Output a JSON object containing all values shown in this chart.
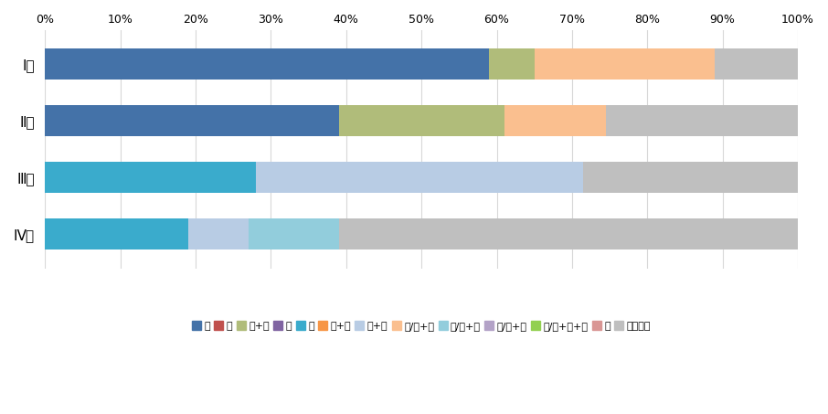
{
  "categories": [
    "Ⅰ期",
    "Ⅱ期",
    "Ⅲ期",
    "Ⅳ期"
  ],
  "legend_info": [
    [
      "手",
      "#4472a8"
    ],
    [
      "内",
      "#c0504d"
    ],
    [
      "手+内",
      "#b0bc7a"
    ],
    [
      "放",
      "#8064a2"
    ],
    [
      "薬",
      "#3aabcc"
    ],
    [
      "放+薬",
      "#f79646"
    ],
    [
      "薬+他",
      "#b8cce4"
    ],
    [
      "手/内+放",
      "#fabf8f"
    ],
    [
      "手/内+薬",
      "#92cddc"
    ],
    [
      "手/内+他",
      "#b3a2c7"
    ],
    [
      "手/内+放+薬",
      "#92d050"
    ],
    [
      "他",
      "#d99694"
    ],
    [
      "治療なし",
      "#bfbfbf"
    ]
  ],
  "bars_data": [
    [
      [
        "手",
        59.0,
        "#4472a8"
      ],
      [
        "手+内",
        6.0,
        "#b0bc7a"
      ],
      [
        "放+薬",
        24.0,
        "#fabf8f"
      ],
      [
        "治療なし",
        11.0,
        "#bfbfbf"
      ]
    ],
    [
      [
        "手",
        39.0,
        "#4472a8"
      ],
      [
        "手+内",
        22.0,
        "#b0bc7a"
      ],
      [
        "放+薬",
        13.5,
        "#fabf8f"
      ],
      [
        "治療なし",
        25.5,
        "#bfbfbf"
      ]
    ],
    [
      [
        "薬",
        28.0,
        "#3aabcc"
      ],
      [
        "薬+他",
        43.5,
        "#b8cce4"
      ],
      [
        "治療なし",
        28.5,
        "#bfbfbf"
      ]
    ],
    [
      [
        "薬",
        19.0,
        "#3aabcc"
      ],
      [
        "薬+他",
        8.0,
        "#b8cce4"
      ],
      [
        "手/内+放+薬",
        12.0,
        "#92cddc"
      ],
      [
        "治療なし",
        61.0,
        "#bfbfbf"
      ]
    ]
  ],
  "background_color": "#ffffff",
  "bar_height": 0.55,
  "figsize": [
    9.06,
    4.53
  ],
  "dpi": 100,
  "grid_color": "#d8d8d8",
  "ytick_fontsize": 11,
  "xtick_fontsize": 9,
  "legend_fontsize": 8
}
